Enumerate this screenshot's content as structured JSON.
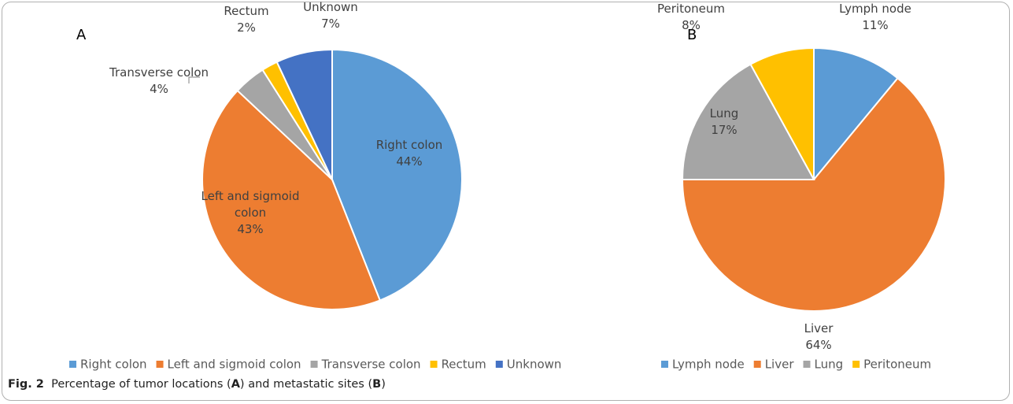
{
  "chart_data": [
    {
      "type": "pie",
      "title": "A",
      "categories": [
        "Right colon",
        "Left and sigmoid colon",
        "Transverse colon",
        "Rectum",
        "Unknown"
      ],
      "values": [
        44,
        43,
        4,
        2,
        7
      ],
      "value_labels": [
        "44%",
        "43%",
        "4%",
        "2%",
        "7%"
      ],
      "colors": [
        "#5b9bd5",
        "#ed7d31",
        "#a5a5a5",
        "#ffc000",
        "#4472c4"
      ],
      "legend": "bottom"
    },
    {
      "type": "pie",
      "title": "B",
      "categories": [
        "Lymph node",
        "Liver",
        "Lung",
        "Peritoneum"
      ],
      "values": [
        11,
        64,
        17,
        8
      ],
      "value_labels": [
        "11%",
        "64%",
        "17%",
        "8%"
      ],
      "colors": [
        "#5b9bd5",
        "#ed7d31",
        "#a5a5a5",
        "#ffc000"
      ],
      "legend": "bottom"
    }
  ],
  "caption": {
    "label": "Fig. 2",
    "parts": [
      "Percentage of tumor locations (",
      "A",
      ") and metastatic sites (",
      "B",
      ")"
    ]
  }
}
